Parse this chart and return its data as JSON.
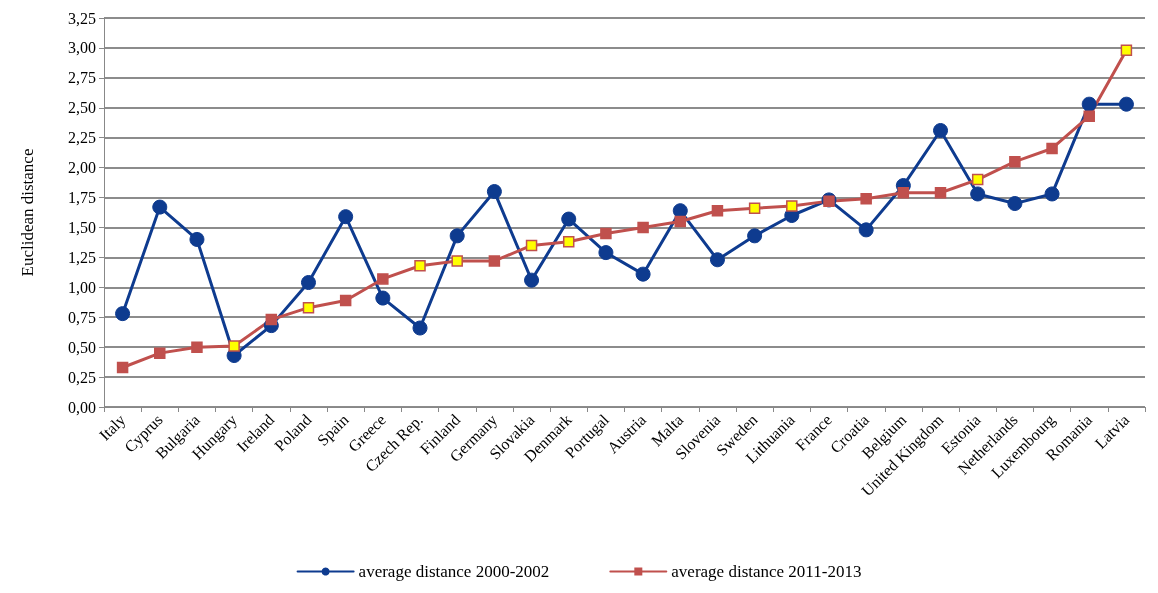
{
  "chart_data": {
    "type": "line",
    "ylabel": "Euclidean distance",
    "categories": [
      "Italy",
      "Cyprus",
      "Bulgaria",
      "Hungary",
      "Ireland",
      "Poland",
      "Spain",
      "Greece",
      "Czech Rep.",
      "Finland",
      "Germany",
      "Slovakia",
      "Denmark",
      "Portugal",
      "Austria",
      "Malta",
      "Slovenia",
      "Sweden",
      "Lithuania",
      "France",
      "Croatia",
      "Belgium",
      "United Kingdom",
      "Estonia",
      "Netherlands",
      "Luxembourg",
      "Romania",
      "Latvia"
    ],
    "series": [
      {
        "name": "average distance 2000-2002",
        "color": "#0e3b8f",
        "marker": "circle",
        "values": [
          0.78,
          1.67,
          1.4,
          0.43,
          0.68,
          1.04,
          1.59,
          0.91,
          0.66,
          1.43,
          1.8,
          1.06,
          1.57,
          1.29,
          1.11,
          1.64,
          1.23,
          1.43,
          1.6,
          1.73,
          1.48,
          1.85,
          2.31,
          1.78,
          1.7,
          1.78,
          2.53,
          2.53
        ]
      },
      {
        "name": "average distance 2011-2013",
        "color": "#c0504d",
        "marker": "square",
        "colors": [
          "#c0504d",
          "#c0504d",
          "#c0504d",
          "#ffff00",
          "#c0504d",
          "#ffff00",
          "#c0504d",
          "#c0504d",
          "#ffff00",
          "#ffff00",
          "#c0504d",
          "#ffff00",
          "#ffff00",
          "#c0504d",
          "#c0504d",
          "#c0504d",
          "#c0504d",
          "#ffff00",
          "#ffff00",
          "#c0504d",
          "#c0504d",
          "#c0504d",
          "#c0504d",
          "#ffff00",
          "#c0504d",
          "#c0504d",
          "#c0504d",
          "#ffff00"
        ],
        "values": [
          0.33,
          0.45,
          0.5,
          0.51,
          0.73,
          0.83,
          0.89,
          1.07,
          1.18,
          1.22,
          1.22,
          1.35,
          1.38,
          1.45,
          1.5,
          1.55,
          1.64,
          1.66,
          1.68,
          1.72,
          1.74,
          1.79,
          1.79,
          1.9,
          2.05,
          2.16,
          2.43,
          2.98
        ]
      }
    ],
    "ylim": [
      0,
      3.25
    ],
    "yticks": [
      {
        "value": 0,
        "label": "0,00"
      },
      {
        "value": 0.25,
        "label": "0,25"
      },
      {
        "value": 0.5,
        "label": "0,50"
      },
      {
        "value": 0.75,
        "label": "0,75"
      },
      {
        "value": 1,
        "label": "1,00"
      },
      {
        "value": 1.25,
        "label": "1,25"
      },
      {
        "value": 1.5,
        "label": "1,50"
      },
      {
        "value": 1.75,
        "label": "1,75"
      },
      {
        "value": 2,
        "label": "2,00"
      },
      {
        "value": 2.25,
        "label": "2,25"
      },
      {
        "value": 2.5,
        "label": "2,50"
      },
      {
        "value": 2.75,
        "label": "2,75"
      },
      {
        "value": 3,
        "label": "3,00"
      },
      {
        "value": 3.25,
        "label": "3,25"
      }
    ],
    "grid": "y",
    "legend": "bottom",
    "line_style": "solid"
  }
}
